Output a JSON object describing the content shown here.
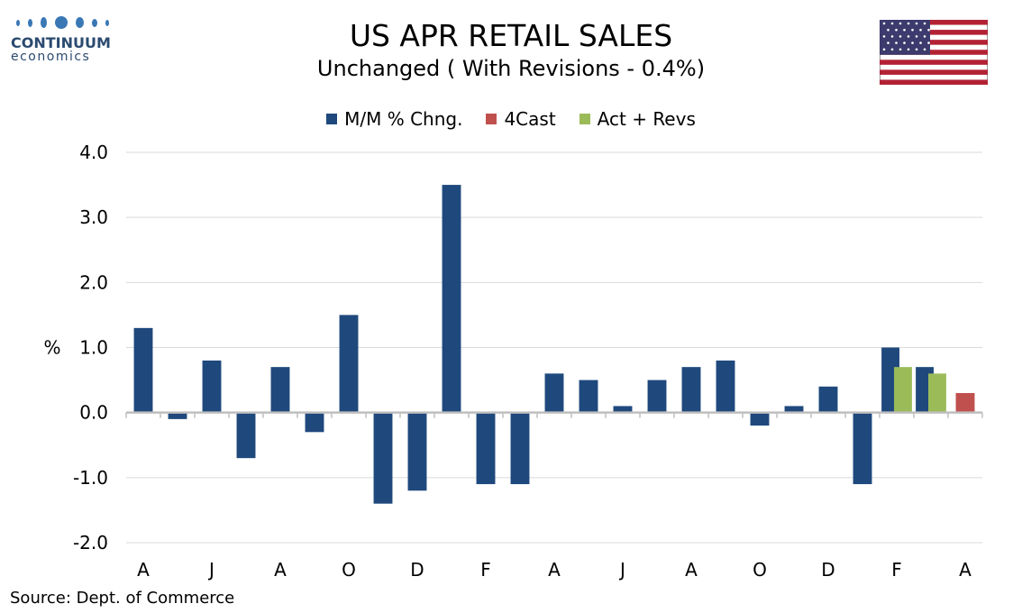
{
  "logo": {
    "name": "CONTINUUM",
    "sub": "economics"
  },
  "title": "US APR RETAIL SALES",
  "subtitle": "Unchanged ( With Revisions - 0.4%)",
  "source": "Source: Dept. of Commerce",
  "colors": {
    "mm": "#1f497d",
    "forecast": "#c0504d",
    "revs": "#9bbb59",
    "grid": "#d9d9d9",
    "axis": "#bfbfbf"
  },
  "chart_data": {
    "type": "bar",
    "ylabel": "%",
    "xlabel": "",
    "ylim": [
      -2.0,
      4.0
    ],
    "yticks": [
      "4.0",
      "3.0",
      "2.0",
      "1.0",
      "0.0",
      "-1.0",
      "-2.0"
    ],
    "ytick_values": [
      4,
      3,
      2,
      1,
      0,
      -1,
      -2
    ],
    "grid": true,
    "legend": "top-center",
    "xtick_labels": [
      "A",
      "J",
      "A",
      "O",
      "D",
      "F",
      "A",
      "J",
      "A",
      "O",
      "D",
      "F",
      "A"
    ],
    "n_periods": 25,
    "series": [
      {
        "name": "M/M % Chng.",
        "color_key": "mm",
        "values": [
          1.3,
          -0.1,
          0.8,
          -0.7,
          0.7,
          -0.3,
          1.5,
          -1.4,
          -1.2,
          3.5,
          -1.1,
          -1.1,
          0.6,
          0.5,
          0.1,
          0.5,
          0.7,
          0.8,
          -0.2,
          0.1,
          0.4,
          -1.1,
          1.0,
          0.7,
          null
        ]
      },
      {
        "name": "4Cast",
        "color_key": "forecast",
        "values": [
          null,
          null,
          null,
          null,
          null,
          null,
          null,
          null,
          null,
          null,
          null,
          null,
          null,
          null,
          null,
          null,
          null,
          null,
          null,
          null,
          null,
          null,
          null,
          null,
          0.3
        ]
      },
      {
        "name": "Act + Revs",
        "color_key": "revs",
        "values": [
          null,
          null,
          null,
          null,
          null,
          null,
          null,
          null,
          null,
          null,
          null,
          null,
          null,
          null,
          null,
          null,
          null,
          null,
          null,
          null,
          null,
          null,
          0.7,
          0.6,
          null
        ]
      }
    ]
  }
}
